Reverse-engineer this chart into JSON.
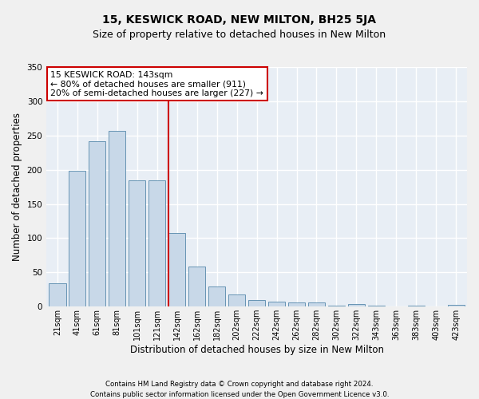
{
  "title": "15, KESWICK ROAD, NEW MILTON, BH25 5JA",
  "subtitle": "Size of property relative to detached houses in New Milton",
  "xlabel": "Distribution of detached houses by size in New Milton",
  "ylabel": "Number of detached properties",
  "categories": [
    "21sqm",
    "41sqm",
    "61sqm",
    "81sqm",
    "101sqm",
    "121sqm",
    "142sqm",
    "162sqm",
    "182sqm",
    "202sqm",
    "222sqm",
    "242sqm",
    "262sqm",
    "282sqm",
    "302sqm",
    "322sqm",
    "343sqm",
    "363sqm",
    "383sqm",
    "403sqm",
    "423sqm"
  ],
  "values": [
    34,
    198,
    242,
    257,
    184,
    184,
    107,
    59,
    29,
    18,
    10,
    7,
    6,
    6,
    1,
    4,
    1,
    0,
    1,
    0,
    2
  ],
  "bar_color": "#c8d8e8",
  "bar_edge_color": "#5588aa",
  "vline_color": "#cc0000",
  "annotation_text": "15 KESWICK ROAD: 143sqm\n← 80% of detached houses are smaller (911)\n20% of semi-detached houses are larger (227) →",
  "annotation_box_color": "#ffffff",
  "annotation_box_edge_color": "#cc0000",
  "ylim": [
    0,
    350
  ],
  "yticks": [
    0,
    50,
    100,
    150,
    200,
    250,
    300,
    350
  ],
  "background_color": "#e8eef5",
  "grid_color": "#ffffff",
  "footer_line1": "Contains HM Land Registry data © Crown copyright and database right 2024.",
  "footer_line2": "Contains public sector information licensed under the Open Government Licence v3.0.",
  "title_fontsize": 10,
  "subtitle_fontsize": 9,
  "xlabel_fontsize": 8.5,
  "ylabel_fontsize": 8.5,
  "fig_width": 6.0,
  "fig_height": 5.0,
  "dpi": 100
}
